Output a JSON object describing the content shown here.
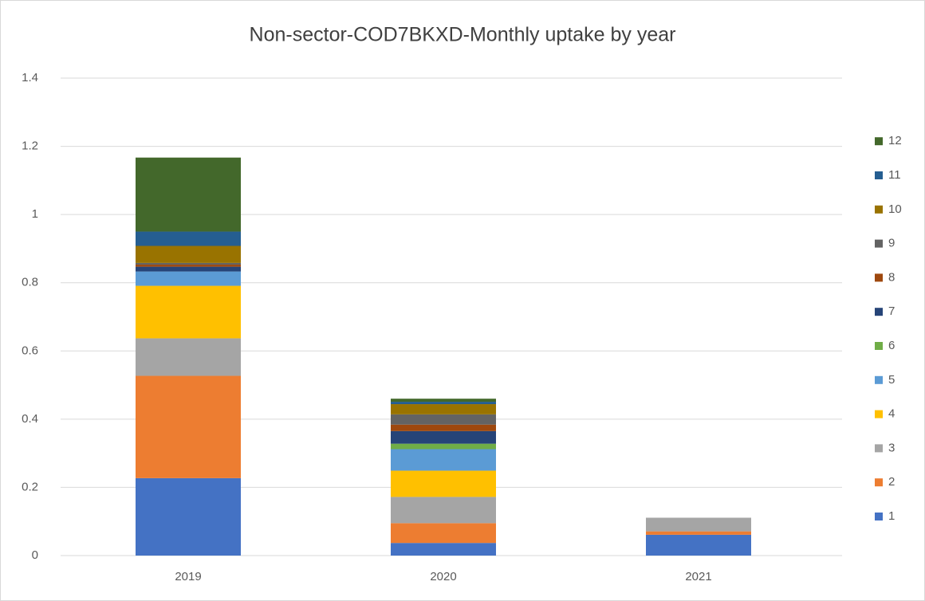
{
  "chart_data": {
    "type": "stacked_bar",
    "title": "Non-sector-COD7BKXD-Monthly uptake by year",
    "categories": [
      "2019",
      "2020",
      "2021"
    ],
    "series": [
      {
        "name": "1",
        "color": "#4472c4",
        "values": [
          0.227,
          0.037,
          0.061
        ]
      },
      {
        "name": "2",
        "color": "#ed7d31",
        "values": [
          0.3,
          0.058,
          0.01
        ]
      },
      {
        "name": "3",
        "color": "#a5a5a5",
        "values": [
          0.11,
          0.077,
          0.04
        ]
      },
      {
        "name": "4",
        "color": "#ffc000",
        "values": [
          0.154,
          0.077,
          0
        ]
      },
      {
        "name": "5",
        "color": "#5b9bd5",
        "values": [
          0.042,
          0.063,
          0
        ]
      },
      {
        "name": "6",
        "color": "#70ad47",
        "values": [
          0,
          0.016,
          0
        ]
      },
      {
        "name": "7",
        "color": "#264478",
        "values": [
          0.014,
          0.037,
          0
        ]
      },
      {
        "name": "8",
        "color": "#9e480e",
        "values": [
          0.006,
          0.019,
          0
        ]
      },
      {
        "name": "9",
        "color": "#636363",
        "values": [
          0.005,
          0.03,
          0
        ]
      },
      {
        "name": "10",
        "color": "#997300",
        "values": [
          0.05,
          0.03,
          0
        ]
      },
      {
        "name": "11",
        "color": "#255e91",
        "values": [
          0.042,
          0.007,
          0
        ]
      },
      {
        "name": "12",
        "color": "#43682b",
        "values": [
          0.217,
          0.009,
          0
        ]
      }
    ],
    "ylim": [
      0,
      1.4
    ],
    "yticks": [
      0,
      0.2,
      0.4,
      0.6,
      0.8,
      1,
      1.2,
      1.4
    ],
    "grid": true,
    "legend": "right"
  }
}
